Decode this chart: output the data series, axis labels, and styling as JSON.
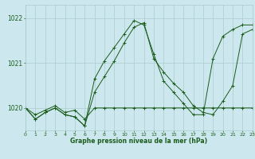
{
  "xlabel": "Graphe pression niveau de la mer (hPa)",
  "bg_color": "#cce8ee",
  "line_color": "#1a5c1a",
  "grid_color": "#aacccc",
  "ylim": [
    1019.5,
    1022.3
  ],
  "yticks": [
    1020,
    1021,
    1022
  ],
  "xlim": [
    0,
    23
  ],
  "xticks": [
    0,
    1,
    2,
    3,
    4,
    5,
    6,
    7,
    8,
    9,
    10,
    11,
    12,
    13,
    14,
    15,
    16,
    17,
    18,
    19,
    20,
    21,
    22,
    23
  ],
  "series1_x": [
    0,
    1,
    2,
    3,
    4,
    5,
    6,
    7,
    8,
    9,
    10,
    11,
    12,
    13,
    14,
    15,
    16,
    17,
    18,
    19,
    20,
    21,
    22,
    23
  ],
  "series1_y": [
    1020.0,
    1019.85,
    1019.95,
    1020.05,
    1019.9,
    1019.95,
    1019.75,
    1020.0,
    1020.0,
    1020.0,
    1020.0,
    1020.0,
    1020.0,
    1020.0,
    1020.0,
    1020.0,
    1020.0,
    1020.0,
    1020.0,
    1020.0,
    1020.0,
    1020.0,
    1020.0,
    1020.0
  ],
  "series2_x": [
    0,
    1,
    2,
    3,
    4,
    5,
    6,
    7,
    8,
    9,
    10,
    11,
    12,
    13,
    14,
    15,
    16,
    17,
    18,
    19,
    20,
    21,
    22,
    23
  ],
  "series2_y": [
    1020.0,
    1019.75,
    1019.9,
    1020.0,
    1019.85,
    1019.8,
    1019.6,
    1020.35,
    1020.7,
    1021.05,
    1021.45,
    1021.8,
    1021.9,
    1021.1,
    1020.8,
    1020.55,
    1020.35,
    1020.05,
    1019.9,
    1019.85,
    1020.15,
    1020.5,
    1021.65,
    1021.75
  ],
  "series3_x": [
    0,
    1,
    2,
    3,
    4,
    5,
    6,
    7,
    8,
    9,
    10,
    11,
    12,
    13,
    14,
    15,
    16,
    17,
    18,
    19,
    20,
    21,
    22,
    23
  ],
  "series3_y": [
    1020.0,
    1019.75,
    1019.9,
    1020.0,
    1019.85,
    1019.8,
    1019.6,
    1020.65,
    1021.05,
    1021.35,
    1021.65,
    1021.95,
    1021.85,
    1021.2,
    1020.6,
    1020.35,
    1020.1,
    1019.85,
    1019.85,
    1021.1,
    1021.6,
    1021.75,
    1021.85,
    1021.85
  ]
}
